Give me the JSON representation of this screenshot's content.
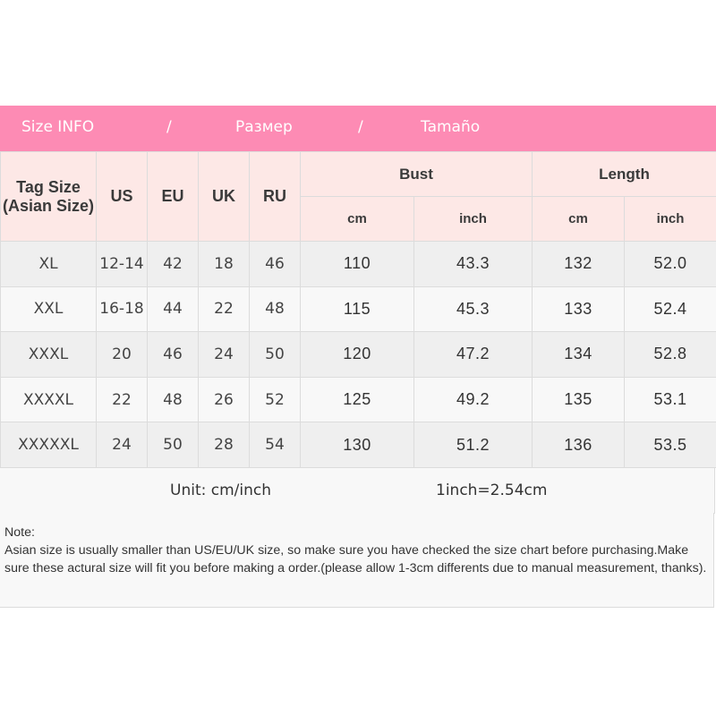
{
  "banner": {
    "title_en": "Size INFO",
    "sep1": "/",
    "title_ru": "Размер",
    "sep2": "/",
    "title_es": "Tamaño",
    "color": "#fd8bb4"
  },
  "header": {
    "tag_size": "Tag Size",
    "tag_size_sub": "(Asian Size)",
    "us": "US",
    "eu": "EU",
    "uk": "UK",
    "ru": "RU",
    "bust": "Bust",
    "length": "Length",
    "bust_cm": "cm",
    "bust_inch": "inch",
    "length_cm": "cm",
    "length_inch": "inch"
  },
  "rows": [
    {
      "tag": "XL",
      "us": "12-14",
      "eu": "42",
      "uk": "18",
      "ru": "46",
      "bust_cm": "110",
      "bust_inch": "43.3",
      "length_cm": "132",
      "length_inch": "52.0"
    },
    {
      "tag": "XXL",
      "us": "16-18",
      "eu": "44",
      "uk": "22",
      "ru": "48",
      "bust_cm": "115",
      "bust_inch": "45.3",
      "length_cm": "133",
      "length_inch": "52.4"
    },
    {
      "tag": "XXXL",
      "us": "20",
      "eu": "46",
      "uk": "24",
      "ru": "50",
      "bust_cm": "120",
      "bust_inch": "47.2",
      "length_cm": "134",
      "length_inch": "52.8"
    },
    {
      "tag": "XXXXL",
      "us": "22",
      "eu": "48",
      "uk": "26",
      "ru": "52",
      "bust_cm": "125",
      "bust_inch": "49.2",
      "length_cm": "135",
      "length_inch": "53.1"
    },
    {
      "tag": "XXXXXL",
      "us": "24",
      "eu": "50",
      "uk": "28",
      "ru": "54",
      "bust_cm": "130",
      "bust_inch": "51.2",
      "length_cm": "136",
      "length_inch": "53.5"
    }
  ],
  "unit": {
    "label": "Unit: cm/inch",
    "conversion": "1inch=2.54cm"
  },
  "note": {
    "title": "Note:",
    "text": "Asian size is usually smaller than US/EU/UK size, so make sure you have checked the size chart before purchasing.Make sure these actural size will fit you before making a order.(please allow 1-3cm differents due to manual measurement, thanks)."
  }
}
